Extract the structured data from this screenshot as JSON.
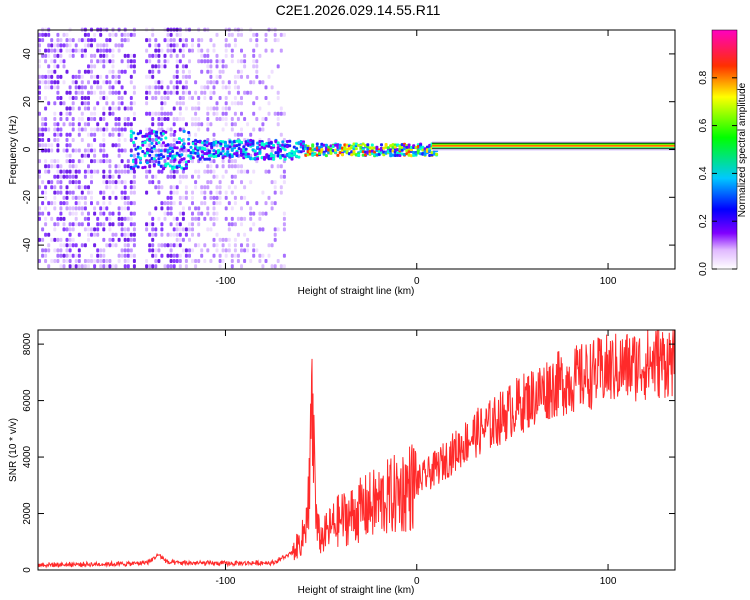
{
  "title": "C2E1.2026.029.14.55.R11",
  "chart_data": [
    {
      "type": "heatmap",
      "name": "spectrogram",
      "xlabel": "Height of straight line (km)",
      "ylabel": "Frequency (Hz)",
      "xlim": [
        -198,
        135
      ],
      "ylim": [
        -50,
        50
      ],
      "xticks": [
        -100,
        0,
        100
      ],
      "xtick_labels": [
        "-100",
        "0",
        "100"
      ],
      "yticks": [
        -40,
        -20,
        0,
        20,
        40
      ],
      "ytick_labels": [
        "-40",
        "-20",
        "0",
        "20",
        "40"
      ],
      "colorbar": {
        "label": "Normalized spectral amplitude",
        "range": [
          0,
          1
        ],
        "ticks": [
          0.0,
          0.2,
          0.4,
          0.6,
          0.8
        ],
        "tick_labels": [
          "0.0",
          "0.2",
          "0.4",
          "0.6",
          "0.8"
        ],
        "colormap": [
          "#e8c8ff",
          "#8000ff",
          "#0000ff",
          "#00c8ff",
          "#00ff00",
          "#ffff00",
          "#ff0000",
          "#ff00c0"
        ]
      },
      "features": {
        "noise_region_x": [
          -198,
          -70
        ],
        "signal_line_frequency": 1.5,
        "signal_line_start_x": -60,
        "strong_tone_start_x": 8
      }
    },
    {
      "type": "line",
      "name": "snr",
      "xlabel": "Height of straight line (km)",
      "ylabel": "SNR (10 * v/v)",
      "xlim": [
        -198,
        135
      ],
      "ylim": [
        0,
        8500
      ],
      "xticks": [
        -100,
        0,
        100
      ],
      "xtick_labels": [
        "-100",
        "0",
        "100"
      ],
      "yticks": [
        0,
        2000,
        4000,
        6000,
        8000
      ],
      "ytick_labels": [
        "0",
        "2000",
        "4000",
        "6000",
        "8000"
      ],
      "line_color": "#ff2a2a",
      "envelope": {
        "x": [
          -198,
          -150,
          -140,
          -135,
          -130,
          -100,
          -75,
          -65,
          -60,
          -57,
          -55,
          -52,
          -50,
          -45,
          -40,
          -35,
          -30,
          -20,
          -10,
          0,
          10,
          20,
          30,
          40,
          50,
          60,
          70,
          80,
          90,
          100,
          110,
          120,
          135
        ],
        "y": [
          180,
          220,
          280,
          550,
          260,
          230,
          260,
          600,
          1100,
          1800,
          6200,
          1400,
          1100,
          1500,
          1800,
          1900,
          2100,
          2400,
          2700,
          3100,
          3600,
          4200,
          4800,
          5200,
          5700,
          6100,
          6500,
          6700,
          6900,
          7100,
          7200,
          7300,
          7450
        ]
      }
    }
  ]
}
